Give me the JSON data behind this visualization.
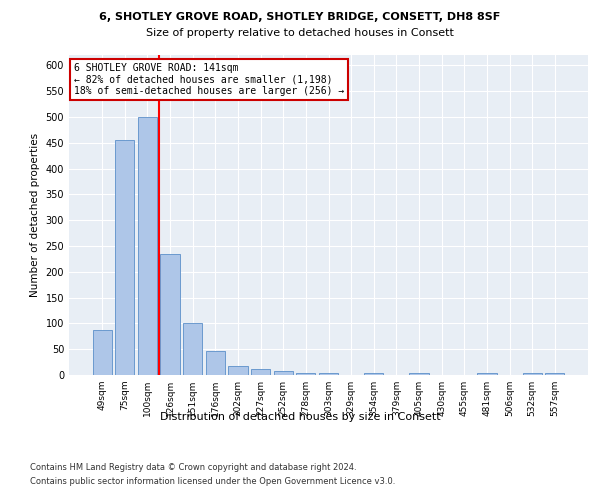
{
  "title_line1": "6, SHOTLEY GROVE ROAD, SHOTLEY BRIDGE, CONSETT, DH8 8SF",
  "title_line2": "Size of property relative to detached houses in Consett",
  "xlabel": "Distribution of detached houses by size in Consett",
  "ylabel": "Number of detached properties",
  "categories": [
    "49sqm",
    "75sqm",
    "100sqm",
    "126sqm",
    "151sqm",
    "176sqm",
    "202sqm",
    "227sqm",
    "252sqm",
    "278sqm",
    "303sqm",
    "329sqm",
    "354sqm",
    "379sqm",
    "405sqm",
    "430sqm",
    "455sqm",
    "481sqm",
    "506sqm",
    "532sqm",
    "557sqm"
  ],
  "values": [
    88,
    455,
    500,
    234,
    101,
    47,
    18,
    11,
    7,
    4,
    3,
    0,
    4,
    0,
    3,
    0,
    0,
    3,
    0,
    3,
    3
  ],
  "bar_color": "#aec6e8",
  "bar_edge_color": "#5b8fc9",
  "red_line_x": 2.5,
  "annotation_text": "6 SHOTLEY GROVE ROAD: 141sqm\n← 82% of detached houses are smaller (1,198)\n18% of semi-detached houses are larger (256) →",
  "annotation_box_color": "#ffffff",
  "annotation_box_edge": "#cc0000",
  "ylim": [
    0,
    620
  ],
  "yticks": [
    0,
    50,
    100,
    150,
    200,
    250,
    300,
    350,
    400,
    450,
    500,
    550,
    600
  ],
  "background_color": "#e8eef5",
  "grid_color": "#ffffff",
  "footer_line1": "Contains HM Land Registry data © Crown copyright and database right 2024.",
  "footer_line2": "Contains public sector information licensed under the Open Government Licence v3.0."
}
